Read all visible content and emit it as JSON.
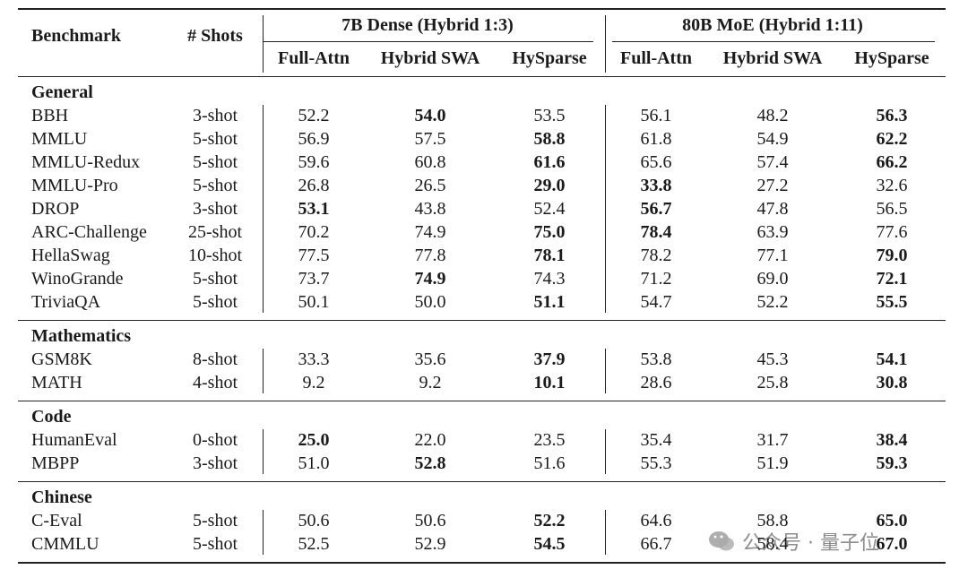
{
  "header": {
    "benchmark": "Benchmark",
    "shots": "# Shots",
    "groups": [
      "7B Dense (Hybrid 1:3)",
      "80B MoE (Hybrid 1:11)"
    ],
    "columns": [
      "Full-Attn",
      "Hybrid SWA",
      "HySparse",
      "Full-Attn",
      "Hybrid SWA",
      "HySparse"
    ]
  },
  "sections": [
    {
      "title": "General",
      "rows": [
        {
          "benchmark": "BBH",
          "shots": "3-shot",
          "scores": [
            "52.2",
            "54.0",
            "53.5",
            "56.1",
            "48.2",
            "56.3"
          ],
          "bold": [
            1,
            5
          ]
        },
        {
          "benchmark": "MMLU",
          "shots": "5-shot",
          "scores": [
            "56.9",
            "57.5",
            "58.8",
            "61.8",
            "54.9",
            "62.2"
          ],
          "bold": [
            2,
            5
          ]
        },
        {
          "benchmark": "MMLU-Redux",
          "shots": "5-shot",
          "scores": [
            "59.6",
            "60.8",
            "61.6",
            "65.6",
            "57.4",
            "66.2"
          ],
          "bold": [
            2,
            5
          ]
        },
        {
          "benchmark": "MMLU-Pro",
          "shots": "5-shot",
          "scores": [
            "26.8",
            "26.5",
            "29.0",
            "33.8",
            "27.2",
            "32.6"
          ],
          "bold": [
            2,
            3
          ]
        },
        {
          "benchmark": "DROP",
          "shots": "3-shot",
          "scores": [
            "53.1",
            "43.8",
            "52.4",
            "56.7",
            "47.8",
            "56.5"
          ],
          "bold": [
            0,
            3
          ]
        },
        {
          "benchmark": "ARC-Challenge",
          "shots": "25-shot",
          "scores": [
            "70.2",
            "74.9",
            "75.0",
            "78.4",
            "63.9",
            "77.6"
          ],
          "bold": [
            2,
            3
          ]
        },
        {
          "benchmark": "HellaSwag",
          "shots": "10-shot",
          "scores": [
            "77.5",
            "77.8",
            "78.1",
            "78.2",
            "77.1",
            "79.0"
          ],
          "bold": [
            2,
            5
          ]
        },
        {
          "benchmark": "WinoGrande",
          "shots": "5-shot",
          "scores": [
            "73.7",
            "74.9",
            "74.3",
            "71.2",
            "69.0",
            "72.1"
          ],
          "bold": [
            1,
            5
          ]
        },
        {
          "benchmark": "TriviaQA",
          "shots": "5-shot",
          "scores": [
            "50.1",
            "50.0",
            "51.1",
            "54.7",
            "52.2",
            "55.5"
          ],
          "bold": [
            2,
            5
          ]
        }
      ]
    },
    {
      "title": "Mathematics",
      "rows": [
        {
          "benchmark": "GSM8K",
          "shots": "8-shot",
          "scores": [
            "33.3",
            "35.6",
            "37.9",
            "53.8",
            "45.3",
            "54.1"
          ],
          "bold": [
            2,
            5
          ]
        },
        {
          "benchmark": "MATH",
          "shots": "4-shot",
          "scores": [
            "9.2",
            "9.2",
            "10.1",
            "28.6",
            "25.8",
            "30.8"
          ],
          "bold": [
            2,
            5
          ]
        }
      ]
    },
    {
      "title": "Code",
      "rows": [
        {
          "benchmark": "HumanEval",
          "shots": "0-shot",
          "scores": [
            "25.0",
            "22.0",
            "23.5",
            "35.4",
            "31.7",
            "38.4"
          ],
          "bold": [
            0,
            5
          ]
        },
        {
          "benchmark": "MBPP",
          "shots": "3-shot",
          "scores": [
            "51.0",
            "52.8",
            "51.6",
            "55.3",
            "51.9",
            "59.3"
          ],
          "bold": [
            1,
            5
          ]
        }
      ]
    },
    {
      "title": "Chinese",
      "rows": [
        {
          "benchmark": "C-Eval",
          "shots": "5-shot",
          "scores": [
            "50.6",
            "50.6",
            "52.2",
            "64.6",
            "58.8",
            "65.0"
          ],
          "bold": [
            2,
            5
          ]
        },
        {
          "benchmark": "CMMLU",
          "shots": "5-shot",
          "scores": [
            "52.5",
            "52.9",
            "54.5",
            "66.7",
            "58.4",
            "67.0"
          ],
          "bold": [
            2,
            5
          ]
        }
      ]
    }
  ],
  "watermark": "公众号 · 量子位"
}
